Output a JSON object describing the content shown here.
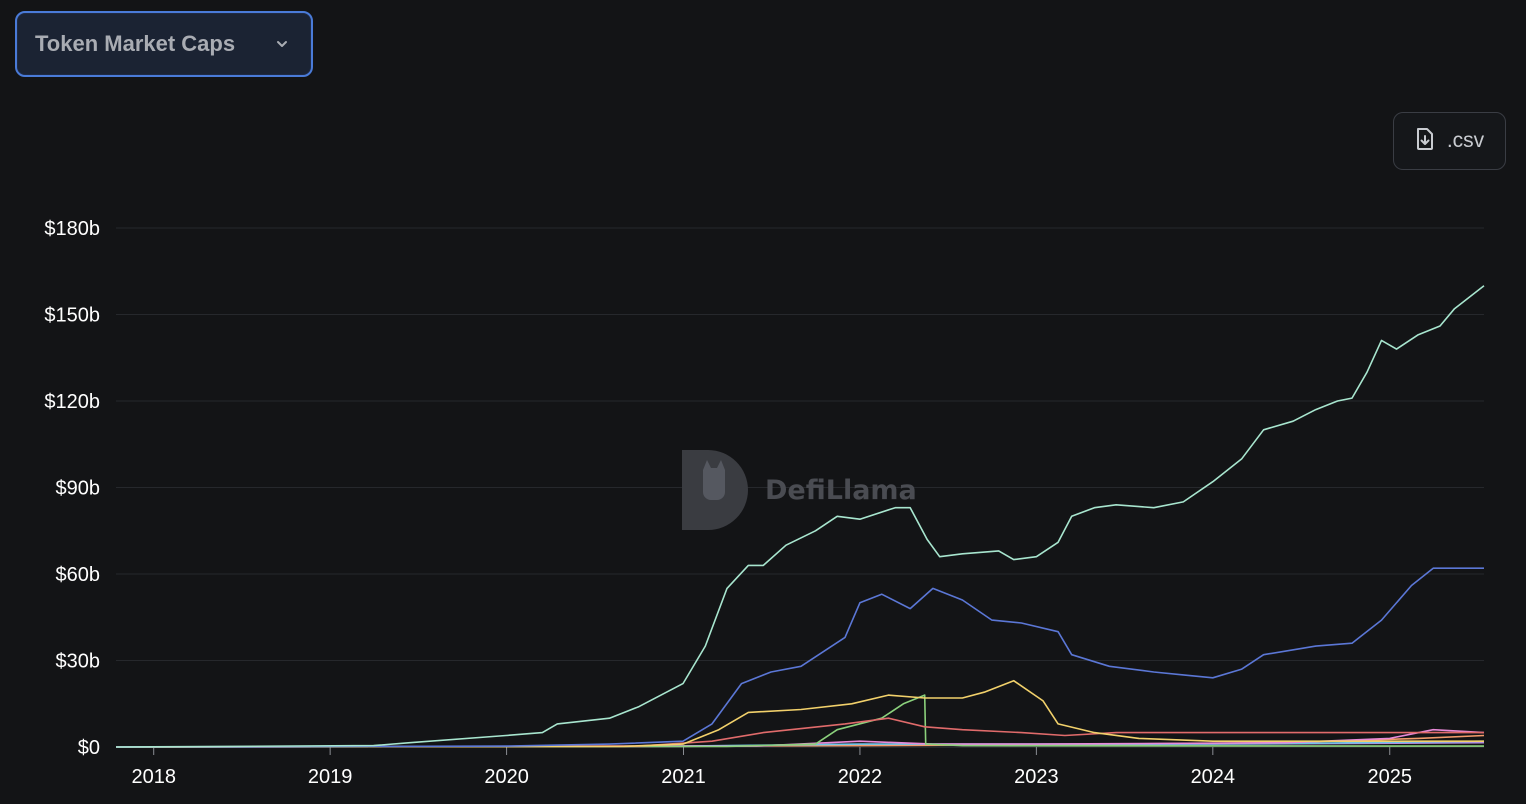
{
  "selector": {
    "label": "Token Market Caps"
  },
  "export": {
    "label": ".csv"
  },
  "watermark": {
    "text": "DefiLlama"
  },
  "colors": {
    "background": "#131416",
    "grid": "#26282c",
    "accent": "#4a7bd8"
  },
  "chart_data": {
    "type": "line",
    "title": "",
    "xlabel": "",
    "ylabel": "",
    "x_range": [
      "2017-10-15",
      "2025-07-15"
    ],
    "ylim": [
      0,
      180
    ],
    "y_unit": "billion USD",
    "grid": true,
    "legend": "none",
    "y_ticks": [
      {
        "value": 0,
        "label": "$0"
      },
      {
        "value": 30,
        "label": "$30b"
      },
      {
        "value": 60,
        "label": "$60b"
      },
      {
        "value": 90,
        "label": "$90b"
      },
      {
        "value": 120,
        "label": "$120b"
      },
      {
        "value": 150,
        "label": "$150b"
      },
      {
        "value": 180,
        "label": "$180b"
      }
    ],
    "x_ticks": [
      {
        "date": "2018-01-01",
        "label": "2018"
      },
      {
        "date": "2019-01-01",
        "label": "2019"
      },
      {
        "date": "2020-01-01",
        "label": "2020"
      },
      {
        "date": "2021-01-01",
        "label": "2021"
      },
      {
        "date": "2022-01-01",
        "label": "2022"
      },
      {
        "date": "2023-01-01",
        "label": "2023"
      },
      {
        "date": "2024-01-01",
        "label": "2024"
      },
      {
        "date": "2025-01-01",
        "label": "2025"
      }
    ],
    "series": [
      {
        "color": "#a8e6cf",
        "points": [
          [
            "2017-10-15",
            0
          ],
          [
            "2019-04-01",
            0.5
          ],
          [
            "2019-06-15",
            1.5
          ],
          [
            "2019-12-31",
            4
          ],
          [
            "2020-03-15",
            5
          ],
          [
            "2020-04-15",
            8
          ],
          [
            "2020-08-01",
            10
          ],
          [
            "2020-10-01",
            14
          ],
          [
            "2020-12-31",
            22
          ],
          [
            "2021-02-15",
            35
          ],
          [
            "2021-04-01",
            55
          ],
          [
            "2021-05-15",
            63
          ],
          [
            "2021-06-15",
            63
          ],
          [
            "2021-08-01",
            70
          ],
          [
            "2021-10-01",
            75
          ],
          [
            "2021-11-15",
            80
          ],
          [
            "2022-01-01",
            79
          ],
          [
            "2022-03-15",
            83
          ],
          [
            "2022-04-15",
            83
          ],
          [
            "2022-05-20",
            72
          ],
          [
            "2022-06-15",
            66
          ],
          [
            "2022-08-01",
            67
          ],
          [
            "2022-10-15",
            68
          ],
          [
            "2022-11-15",
            65
          ],
          [
            "2023-01-01",
            66
          ],
          [
            "2023-02-15",
            71
          ],
          [
            "2023-03-15",
            80
          ],
          [
            "2023-05-01",
            83
          ],
          [
            "2023-06-15",
            84
          ],
          [
            "2023-09-01",
            83
          ],
          [
            "2023-11-01",
            85
          ],
          [
            "2024-01-01",
            92
          ],
          [
            "2024-03-01",
            100
          ],
          [
            "2024-04-15",
            110
          ],
          [
            "2024-06-15",
            113
          ],
          [
            "2024-08-01",
            117
          ],
          [
            "2024-09-15",
            120
          ],
          [
            "2024-10-15",
            121
          ],
          [
            "2024-11-15",
            130
          ],
          [
            "2024-12-15",
            141
          ],
          [
            "2025-01-15",
            138
          ],
          [
            "2025-03-01",
            143
          ],
          [
            "2025-04-15",
            146
          ],
          [
            "2025-05-15",
            152
          ],
          [
            "2025-07-15",
            160
          ]
        ]
      },
      {
        "color": "#5b77d6",
        "points": [
          [
            "2017-10-15",
            0
          ],
          [
            "2020-01-01",
            0.3
          ],
          [
            "2020-08-01",
            1
          ],
          [
            "2020-12-31",
            2
          ],
          [
            "2021-03-01",
            8
          ],
          [
            "2021-05-01",
            22
          ],
          [
            "2021-07-01",
            26
          ],
          [
            "2021-09-01",
            28
          ],
          [
            "2021-12-01",
            38
          ],
          [
            "2022-01-01",
            50
          ],
          [
            "2022-02-15",
            53
          ],
          [
            "2022-04-15",
            48
          ],
          [
            "2022-06-01",
            55
          ],
          [
            "2022-08-01",
            51
          ],
          [
            "2022-10-01",
            44
          ],
          [
            "2022-12-01",
            43
          ],
          [
            "2023-02-15",
            40
          ],
          [
            "2023-03-15",
            32
          ],
          [
            "2023-06-01",
            28
          ],
          [
            "2023-09-01",
            26
          ],
          [
            "2023-11-01",
            25
          ],
          [
            "2024-01-01",
            24
          ],
          [
            "2024-03-01",
            27
          ],
          [
            "2024-04-15",
            32
          ],
          [
            "2024-08-01",
            35
          ],
          [
            "2024-10-15",
            36
          ],
          [
            "2024-12-15",
            44
          ],
          [
            "2025-02-15",
            56
          ],
          [
            "2025-04-01",
            62
          ],
          [
            "2025-07-15",
            62
          ]
        ]
      },
      {
        "color": "#f2d16b",
        "points": [
          [
            "2017-10-15",
            0
          ],
          [
            "2020-09-01",
            0.2
          ],
          [
            "2020-12-31",
            1
          ],
          [
            "2021-03-15",
            6
          ],
          [
            "2021-05-15",
            12
          ],
          [
            "2021-09-01",
            13
          ],
          [
            "2021-12-15",
            15
          ],
          [
            "2022-03-01",
            18
          ],
          [
            "2022-05-15",
            17
          ],
          [
            "2022-08-01",
            17
          ],
          [
            "2022-09-15",
            19
          ],
          [
            "2022-11-15",
            23
          ],
          [
            "2023-01-15",
            16
          ],
          [
            "2023-02-15",
            8
          ],
          [
            "2023-05-01",
            5
          ],
          [
            "2023-08-01",
            3
          ],
          [
            "2024-01-01",
            2
          ],
          [
            "2025-07-15",
            2
          ]
        ]
      },
      {
        "color": "#e06b6b",
        "points": [
          [
            "2017-10-15",
            0
          ],
          [
            "2020-10-01",
            0.3
          ],
          [
            "2021-03-01",
            2
          ],
          [
            "2021-06-15",
            5
          ],
          [
            "2021-12-01",
            8
          ],
          [
            "2022-03-01",
            10
          ],
          [
            "2022-05-15",
            7
          ],
          [
            "2022-08-01",
            6
          ],
          [
            "2022-12-01",
            5
          ],
          [
            "2023-03-01",
            4
          ],
          [
            "2023-06-15",
            5
          ],
          [
            "2024-03-01",
            5
          ],
          [
            "2024-09-01",
            5
          ],
          [
            "2025-01-01",
            5
          ],
          [
            "2025-07-15",
            5
          ]
        ]
      },
      {
        "color": "#8bd17c",
        "points": [
          [
            "2017-10-15",
            0
          ],
          [
            "2021-04-01",
            0.2
          ],
          [
            "2021-10-01",
            1
          ],
          [
            "2021-11-15",
            6
          ],
          [
            "2022-02-15",
            10
          ],
          [
            "2022-04-01",
            15
          ],
          [
            "2022-05-15",
            18
          ],
          [
            "2022-05-17",
            1
          ],
          [
            "2022-08-01",
            0.5
          ],
          [
            "2025-07-15",
            0.3
          ]
        ]
      },
      {
        "color": "#e88ad8",
        "points": [
          [
            "2017-10-15",
            0
          ],
          [
            "2021-06-01",
            0.3
          ],
          [
            "2022-01-01",
            2
          ],
          [
            "2022-06-01",
            1
          ],
          [
            "2023-01-01",
            1
          ],
          [
            "2024-06-01",
            1.5
          ],
          [
            "2025-01-01",
            3
          ],
          [
            "2025-04-01",
            6
          ],
          [
            "2025-07-15",
            5
          ]
        ]
      },
      {
        "color": "#6fc6e8",
        "points": [
          [
            "2017-10-15",
            0
          ],
          [
            "2021-01-01",
            0.3
          ],
          [
            "2022-01-01",
            1
          ],
          [
            "2023-06-01",
            1
          ],
          [
            "2024-06-01",
            1.2
          ],
          [
            "2025-07-15",
            2
          ]
        ]
      },
      {
        "color": "#f29b6b",
        "points": [
          [
            "2017-10-15",
            0
          ],
          [
            "2022-01-01",
            0.5
          ],
          [
            "2023-01-01",
            0.8
          ],
          [
            "2024-06-01",
            1.5
          ],
          [
            "2025-03-01",
            3
          ],
          [
            "2025-07-15",
            4
          ]
        ]
      },
      {
        "color": "#b58be0",
        "points": [
          [
            "2017-10-15",
            0
          ],
          [
            "2021-01-01",
            0.2
          ],
          [
            "2022-01-01",
            0.8
          ],
          [
            "2024-01-01",
            1
          ],
          [
            "2025-07-15",
            1.5
          ]
        ]
      }
    ]
  }
}
